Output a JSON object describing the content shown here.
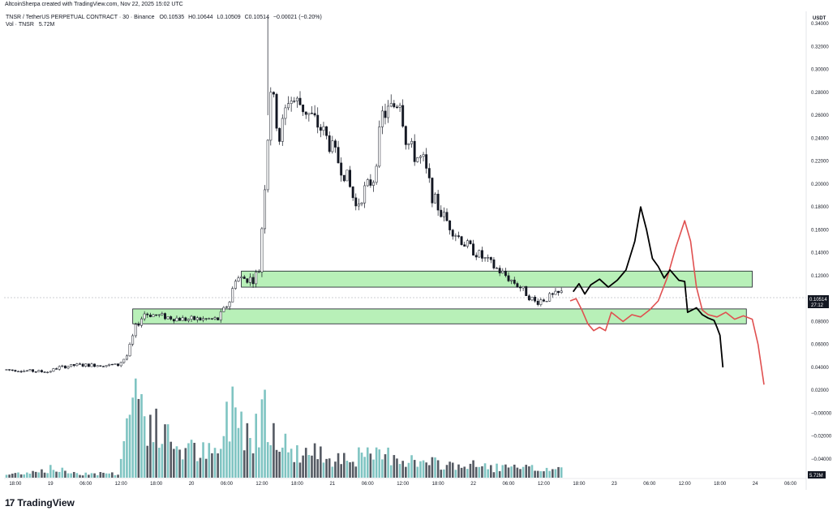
{
  "header": {
    "credit": "AltcoinSherpa created with TradingView.com, Nov 22, 2025 15:02 UTC",
    "symbol_line": {
      "name": "TNSR / TetherUS PERPETUAL CONTRACT · 30 · Binance",
      "o": "O0.10535",
      "h": "H0.10644",
      "l": "L0.10509",
      "c": "C0.10514",
      "change": "−0.00021 (−0.20%)"
    },
    "volume_line": {
      "label": "Vol · TNSR",
      "value": "5.72M"
    }
  },
  "price_scale": {
    "currency": "USDT",
    "current_price": "0.10514",
    "countdown": "27:12",
    "volume_value": "5.72M"
  },
  "footer": {
    "logo_text": "TradingView",
    "logo_mark": "17"
  },
  "colors": {
    "up": "#ffffff",
    "down": "#131722",
    "vol_up": "#7fc4c2",
    "vol_down": "#555a63",
    "zone_fill": "#b8f0b8",
    "zone_stroke": "#131722",
    "path_black": "#000000",
    "path_red": "#e05050"
  },
  "chart_data": {
    "type": "candlestick",
    "title": "",
    "ylabel": "USDT",
    "ylim": [
      -0.05,
      0.35
    ],
    "y_ticks": [
      0.34,
      0.32,
      0.3,
      0.28,
      0.26,
      0.24,
      0.22,
      0.2,
      0.18,
      0.16,
      0.14,
      0.12,
      0.08,
      0.06,
      0.04,
      0.02,
      0.0,
      -0.02,
      -0.04
    ],
    "y_tick_labels": [
      "0.34000",
      "0.32000",
      "0.30000",
      "0.28000",
      "0.26000",
      "0.24000",
      "0.22000",
      "0.20000",
      "0.18000",
      "0.16000",
      "0.14000",
      "0.12000",
      "0.08000",
      "0.06000",
      "0.04000",
      "0.02000",
      "−0.00000",
      "−0.02000",
      "−0.04000"
    ],
    "x_ticks": [
      {
        "i": 3,
        "label": "18:00"
      },
      {
        "i": 15,
        "label": "19"
      },
      {
        "i": 27,
        "label": "06:00"
      },
      {
        "i": 39,
        "label": "12:00"
      },
      {
        "i": 51,
        "label": "18:00"
      },
      {
        "i": 63,
        "label": "20"
      },
      {
        "i": 75,
        "label": "06:00"
      },
      {
        "i": 87,
        "label": "12:00"
      },
      {
        "i": 99,
        "label": "18:00"
      },
      {
        "i": 111,
        "label": "21"
      },
      {
        "i": 123,
        "label": "06:00"
      },
      {
        "i": 135,
        "label": "12:00"
      },
      {
        "i": 147,
        "label": "18:00"
      },
      {
        "i": 159,
        "label": "22"
      },
      {
        "i": 171,
        "label": "06:00"
      },
      {
        "i": 183,
        "label": "12:00"
      },
      {
        "i": 195,
        "label": "18:00"
      },
      {
        "i": 207,
        "label": "23"
      },
      {
        "i": 219,
        "label": "06:00"
      },
      {
        "i": 231,
        "label": "12:00"
      },
      {
        "i": 243,
        "label": "18:00"
      },
      {
        "i": 255,
        "label": "24"
      },
      {
        "i": 267,
        "label": "06:00"
      }
    ],
    "anchors": [
      [
        0,
        0.038
      ],
      [
        14,
        0.036
      ],
      [
        18,
        0.04
      ],
      [
        24,
        0.042
      ],
      [
        38,
        0.042
      ],
      [
        41,
        0.05
      ],
      [
        44,
        0.075
      ],
      [
        47,
        0.087
      ],
      [
        52,
        0.085
      ],
      [
        60,
        0.082
      ],
      [
        72,
        0.082
      ],
      [
        76,
        0.098
      ],
      [
        78,
        0.118
      ],
      [
        84,
        0.117
      ],
      [
        86,
        0.125
      ],
      [
        88,
        0.2
      ],
      [
        90,
        0.285
      ],
      [
        93,
        0.24
      ],
      [
        96,
        0.275
      ],
      [
        100,
        0.27
      ],
      [
        104,
        0.258
      ],
      [
        108,
        0.245
      ],
      [
        112,
        0.225
      ],
      [
        116,
        0.205
      ],
      [
        119,
        0.18
      ],
      [
        122,
        0.195
      ],
      [
        125,
        0.205
      ],
      [
        128,
        0.26
      ],
      [
        131,
        0.265
      ],
      [
        134,
        0.275
      ],
      [
        136,
        0.24
      ],
      [
        139,
        0.225
      ],
      [
        142,
        0.22
      ],
      [
        145,
        0.19
      ],
      [
        148,
        0.175
      ],
      [
        152,
        0.16
      ],
      [
        156,
        0.148
      ],
      [
        160,
        0.14
      ],
      [
        165,
        0.13
      ],
      [
        170,
        0.12
      ],
      [
        175,
        0.11
      ],
      [
        180,
        0.097
      ],
      [
        186,
        0.102
      ],
      [
        189,
        0.105
      ]
    ],
    "volumes_note": "volume bars rendered from series",
    "volume_anchors": [
      [
        0,
        0.2
      ],
      [
        15,
        0.6
      ],
      [
        25,
        0.3
      ],
      [
        38,
        0.3
      ],
      [
        41,
        3.5
      ],
      [
        44,
        6.5
      ],
      [
        47,
        4.2
      ],
      [
        52,
        3.0
      ],
      [
        60,
        2.0
      ],
      [
        72,
        1.5
      ],
      [
        76,
        4.5
      ],
      [
        78,
        5.0
      ],
      [
        84,
        2.5
      ],
      [
        88,
        5.5
      ],
      [
        90,
        4.0
      ],
      [
        96,
        1.8
      ],
      [
        110,
        1.5
      ],
      [
        125,
        1.4
      ],
      [
        132,
        1.6
      ],
      [
        140,
        1.0
      ],
      [
        160,
        0.8
      ],
      [
        175,
        0.6
      ],
      [
        189,
        0.6
      ]
    ],
    "zones": [
      {
        "i0": 80,
        "i1": 254,
        "y0": 0.11,
        "y1": 0.124
      },
      {
        "i0": 43,
        "i1": 252,
        "y0": 0.078,
        "y1": 0.091
      }
    ],
    "projection_black": [
      [
        193,
        0.106
      ],
      [
        195,
        0.113
      ],
      [
        197,
        0.104
      ],
      [
        199,
        0.112
      ],
      [
        202,
        0.117
      ],
      [
        205,
        0.11
      ],
      [
        208,
        0.116
      ],
      [
        211,
        0.125
      ],
      [
        214,
        0.15
      ],
      [
        216,
        0.18
      ],
      [
        218,
        0.16
      ],
      [
        220,
        0.135
      ],
      [
        222,
        0.128
      ],
      [
        224,
        0.118
      ],
      [
        226,
        0.125
      ],
      [
        229,
        0.116
      ],
      [
        231,
        0.115
      ],
      [
        232,
        0.088
      ],
      [
        235,
        0.092
      ],
      [
        237,
        0.086
      ],
      [
        239,
        0.083
      ],
      [
        241,
        0.081
      ],
      [
        242,
        0.075
      ],
      [
        243,
        0.068
      ],
      [
        244,
        0.04
      ]
    ],
    "projection_red": [
      [
        192,
        0.098
      ],
      [
        194,
        0.1
      ],
      [
        196,
        0.09
      ],
      [
        198,
        0.078
      ],
      [
        200,
        0.072
      ],
      [
        202,
        0.075
      ],
      [
        204,
        0.072
      ],
      [
        206,
        0.088
      ],
      [
        208,
        0.084
      ],
      [
        210,
        0.08
      ],
      [
        213,
        0.086
      ],
      [
        216,
        0.084
      ],
      [
        219,
        0.09
      ],
      [
        222,
        0.098
      ],
      [
        225,
        0.118
      ],
      [
        228,
        0.145
      ],
      [
        231,
        0.168
      ],
      [
        233,
        0.15
      ],
      [
        235,
        0.11
      ],
      [
        237,
        0.09
      ],
      [
        239,
        0.086
      ],
      [
        242,
        0.084
      ],
      [
        245,
        0.088
      ],
      [
        248,
        0.082
      ],
      [
        251,
        0.085
      ],
      [
        254,
        0.082
      ],
      [
        256,
        0.06
      ],
      [
        258,
        0.025
      ]
    ]
  }
}
